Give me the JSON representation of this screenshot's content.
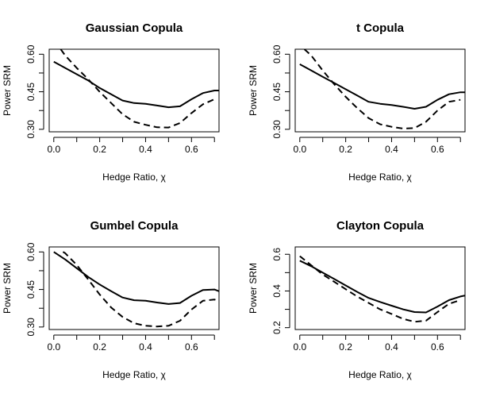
{
  "chart_data": [
    {
      "type": "line",
      "title": "Gaussian Copula",
      "xlabel": "Hedge Ratio, χ",
      "ylabel": "Power SRM",
      "xlim": [
        -0.02,
        0.72
      ],
      "ylim": [
        0.29,
        0.62
      ],
      "xticks": [
        "0.0",
        "0.2",
        "0.4",
        "0.6"
      ],
      "xtick_values": [
        0.0,
        0.2,
        0.4,
        0.6
      ],
      "yticks": [
        "0.30",
        "0.45",
        "0.60"
      ],
      "ytick_values": [
        0.3,
        0.45,
        0.6
      ],
      "series": [
        {
          "line_style": "solid",
          "x": [
            0.0,
            0.05,
            0.1,
            0.15,
            0.2,
            0.25,
            0.3,
            0.35,
            0.4,
            0.45,
            0.5,
            0.55,
            0.6,
            0.65,
            0.7,
            0.72
          ],
          "y": [
            0.57,
            0.545,
            0.52,
            0.495,
            0.465,
            0.44,
            0.415,
            0.405,
            0.402,
            0.395,
            0.388,
            0.392,
            0.42,
            0.445,
            0.455,
            0.455
          ]
        },
        {
          "line_style": "dashed",
          "x": [
            0.03,
            0.05,
            0.1,
            0.15,
            0.2,
            0.25,
            0.3,
            0.35,
            0.4,
            0.45,
            0.5,
            0.55,
            0.6,
            0.65,
            0.7
          ],
          "y": [
            0.62,
            0.595,
            0.545,
            0.5,
            0.45,
            0.405,
            0.36,
            0.33,
            0.318,
            0.308,
            0.307,
            0.325,
            0.365,
            0.4,
            0.42
          ]
        }
      ]
    },
    {
      "type": "line",
      "title": "t Copula",
      "xlabel": "Hedge Ratio, χ",
      "ylabel": "Power SRM",
      "xlim": [
        -0.02,
        0.72
      ],
      "ylim": [
        0.29,
        0.62
      ],
      "xticks": [
        "0.0",
        "0.2",
        "0.4",
        "0.6"
      ],
      "xtick_values": [
        0.0,
        0.2,
        0.4,
        0.6
      ],
      "yticks": [
        "0.30",
        "0.45",
        "0.60"
      ],
      "ytick_values": [
        0.3,
        0.45,
        0.6
      ],
      "series": [
        {
          "line_style": "solid",
          "x": [
            0.0,
            0.05,
            0.1,
            0.15,
            0.2,
            0.25,
            0.3,
            0.35,
            0.4,
            0.45,
            0.5,
            0.55,
            0.6,
            0.65,
            0.7,
            0.72
          ],
          "y": [
            0.56,
            0.535,
            0.51,
            0.485,
            0.46,
            0.435,
            0.41,
            0.402,
            0.397,
            0.39,
            0.382,
            0.39,
            0.418,
            0.44,
            0.448,
            0.448
          ]
        },
        {
          "line_style": "dashed",
          "x": [
            0.02,
            0.05,
            0.1,
            0.15,
            0.2,
            0.25,
            0.3,
            0.35,
            0.4,
            0.45,
            0.5,
            0.55,
            0.6,
            0.65,
            0.7
          ],
          "y": [
            0.62,
            0.595,
            0.535,
            0.48,
            0.43,
            0.385,
            0.345,
            0.32,
            0.31,
            0.303,
            0.305,
            0.33,
            0.375,
            0.41,
            0.418
          ]
        }
      ]
    },
    {
      "type": "line",
      "title": "Gumbel Copula",
      "xlabel": "Hedge Ratio, χ",
      "ylabel": "Power SRM",
      "xlim": [
        -0.02,
        0.72
      ],
      "ylim": [
        0.29,
        0.62
      ],
      "xticks": [
        "0.0",
        "0.2",
        "0.4",
        "0.6"
      ],
      "xtick_values": [
        0.0,
        0.2,
        0.4,
        0.6
      ],
      "yticks": [
        "0.30",
        "0.45",
        "0.60"
      ],
      "ytick_values": [
        0.3,
        0.45,
        0.6
      ],
      "series": [
        {
          "line_style": "solid",
          "x": [
            0.0,
            0.05,
            0.1,
            0.15,
            0.2,
            0.25,
            0.3,
            0.35,
            0.4,
            0.45,
            0.5,
            0.55,
            0.6,
            0.65,
            0.7,
            0.72
          ],
          "y": [
            0.6,
            0.57,
            0.535,
            0.5,
            0.47,
            0.443,
            0.418,
            0.407,
            0.405,
            0.398,
            0.392,
            0.396,
            0.425,
            0.448,
            0.45,
            0.443
          ]
        },
        {
          "line_style": "dashed",
          "x": [
            0.04,
            0.05,
            0.1,
            0.15,
            0.2,
            0.25,
            0.3,
            0.35,
            0.4,
            0.45,
            0.5,
            0.55,
            0.6,
            0.65,
            0.7,
            0.72
          ],
          "y": [
            0.6,
            0.595,
            0.548,
            0.49,
            0.43,
            0.378,
            0.34,
            0.315,
            0.305,
            0.302,
            0.305,
            0.325,
            0.37,
            0.405,
            0.41,
            0.402
          ]
        }
      ]
    },
    {
      "type": "line",
      "title": "Clayton Copula",
      "xlabel": "Hedge Ratio, χ",
      "ylabel": "Power SRM",
      "xlim": [
        -0.02,
        0.72
      ],
      "ylim": [
        0.19,
        0.64
      ],
      "xticks": [
        "0.0",
        "0.2",
        "0.4",
        "0.6"
      ],
      "xtick_values": [
        0.0,
        0.2,
        0.4,
        0.6
      ],
      "yticks": [
        "0.2",
        "0.4",
        "0.6"
      ],
      "ytick_values": [
        0.2,
        0.4,
        0.6
      ],
      "series": [
        {
          "line_style": "solid",
          "x": [
            0.0,
            0.05,
            0.1,
            0.15,
            0.2,
            0.25,
            0.3,
            0.35,
            0.4,
            0.45,
            0.5,
            0.55,
            0.6,
            0.65,
            0.7,
            0.72
          ],
          "y": [
            0.565,
            0.535,
            0.5,
            0.465,
            0.43,
            0.395,
            0.362,
            0.34,
            0.32,
            0.3,
            0.285,
            0.283,
            0.315,
            0.35,
            0.37,
            0.375
          ]
        },
        {
          "line_style": "dashed",
          "x": [
            0.0,
            0.05,
            0.1,
            0.15,
            0.2,
            0.25,
            0.3,
            0.35,
            0.4,
            0.45,
            0.5,
            0.55,
            0.6,
            0.65,
            0.7
          ],
          "y": [
            0.59,
            0.54,
            0.49,
            0.45,
            0.41,
            0.37,
            0.335,
            0.3,
            0.275,
            0.248,
            0.232,
            0.238,
            0.285,
            0.33,
            0.35
          ]
        }
      ]
    }
  ]
}
